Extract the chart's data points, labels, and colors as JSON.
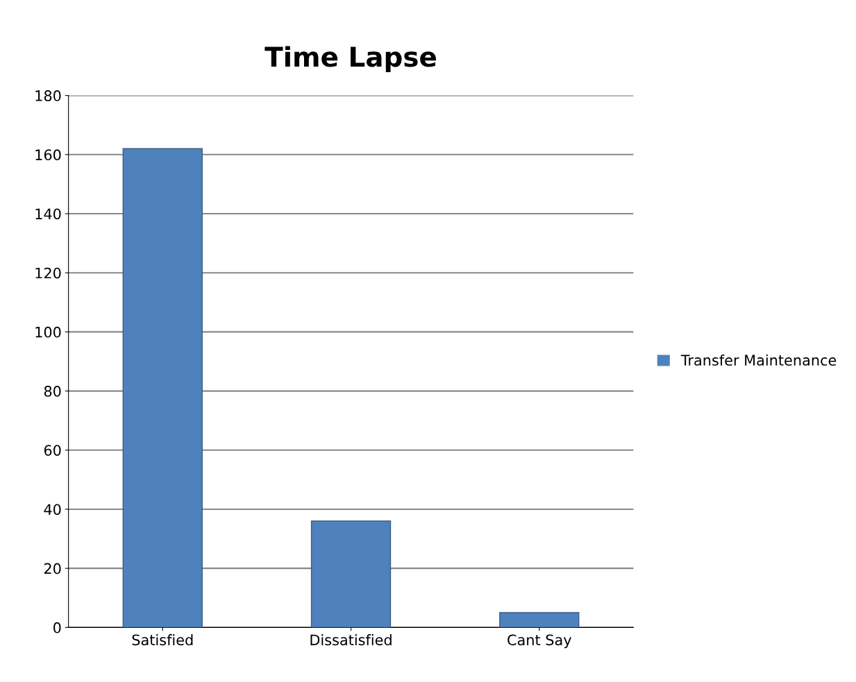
{
  "chart_data": {
    "type": "bar",
    "title": "Time Lapse",
    "categories": [
      "Satisfied",
      "Dissatisfied",
      "Cant Say"
    ],
    "series": [
      {
        "name": "Transfer Maintenance",
        "color": "#4f81bd",
        "values": [
          162,
          36,
          5
        ]
      }
    ],
    "ylim": [
      0,
      180
    ],
    "yticks": [
      0,
      20,
      40,
      60,
      80,
      100,
      120,
      140,
      160,
      180
    ],
    "grid": "y",
    "legend": "right"
  }
}
